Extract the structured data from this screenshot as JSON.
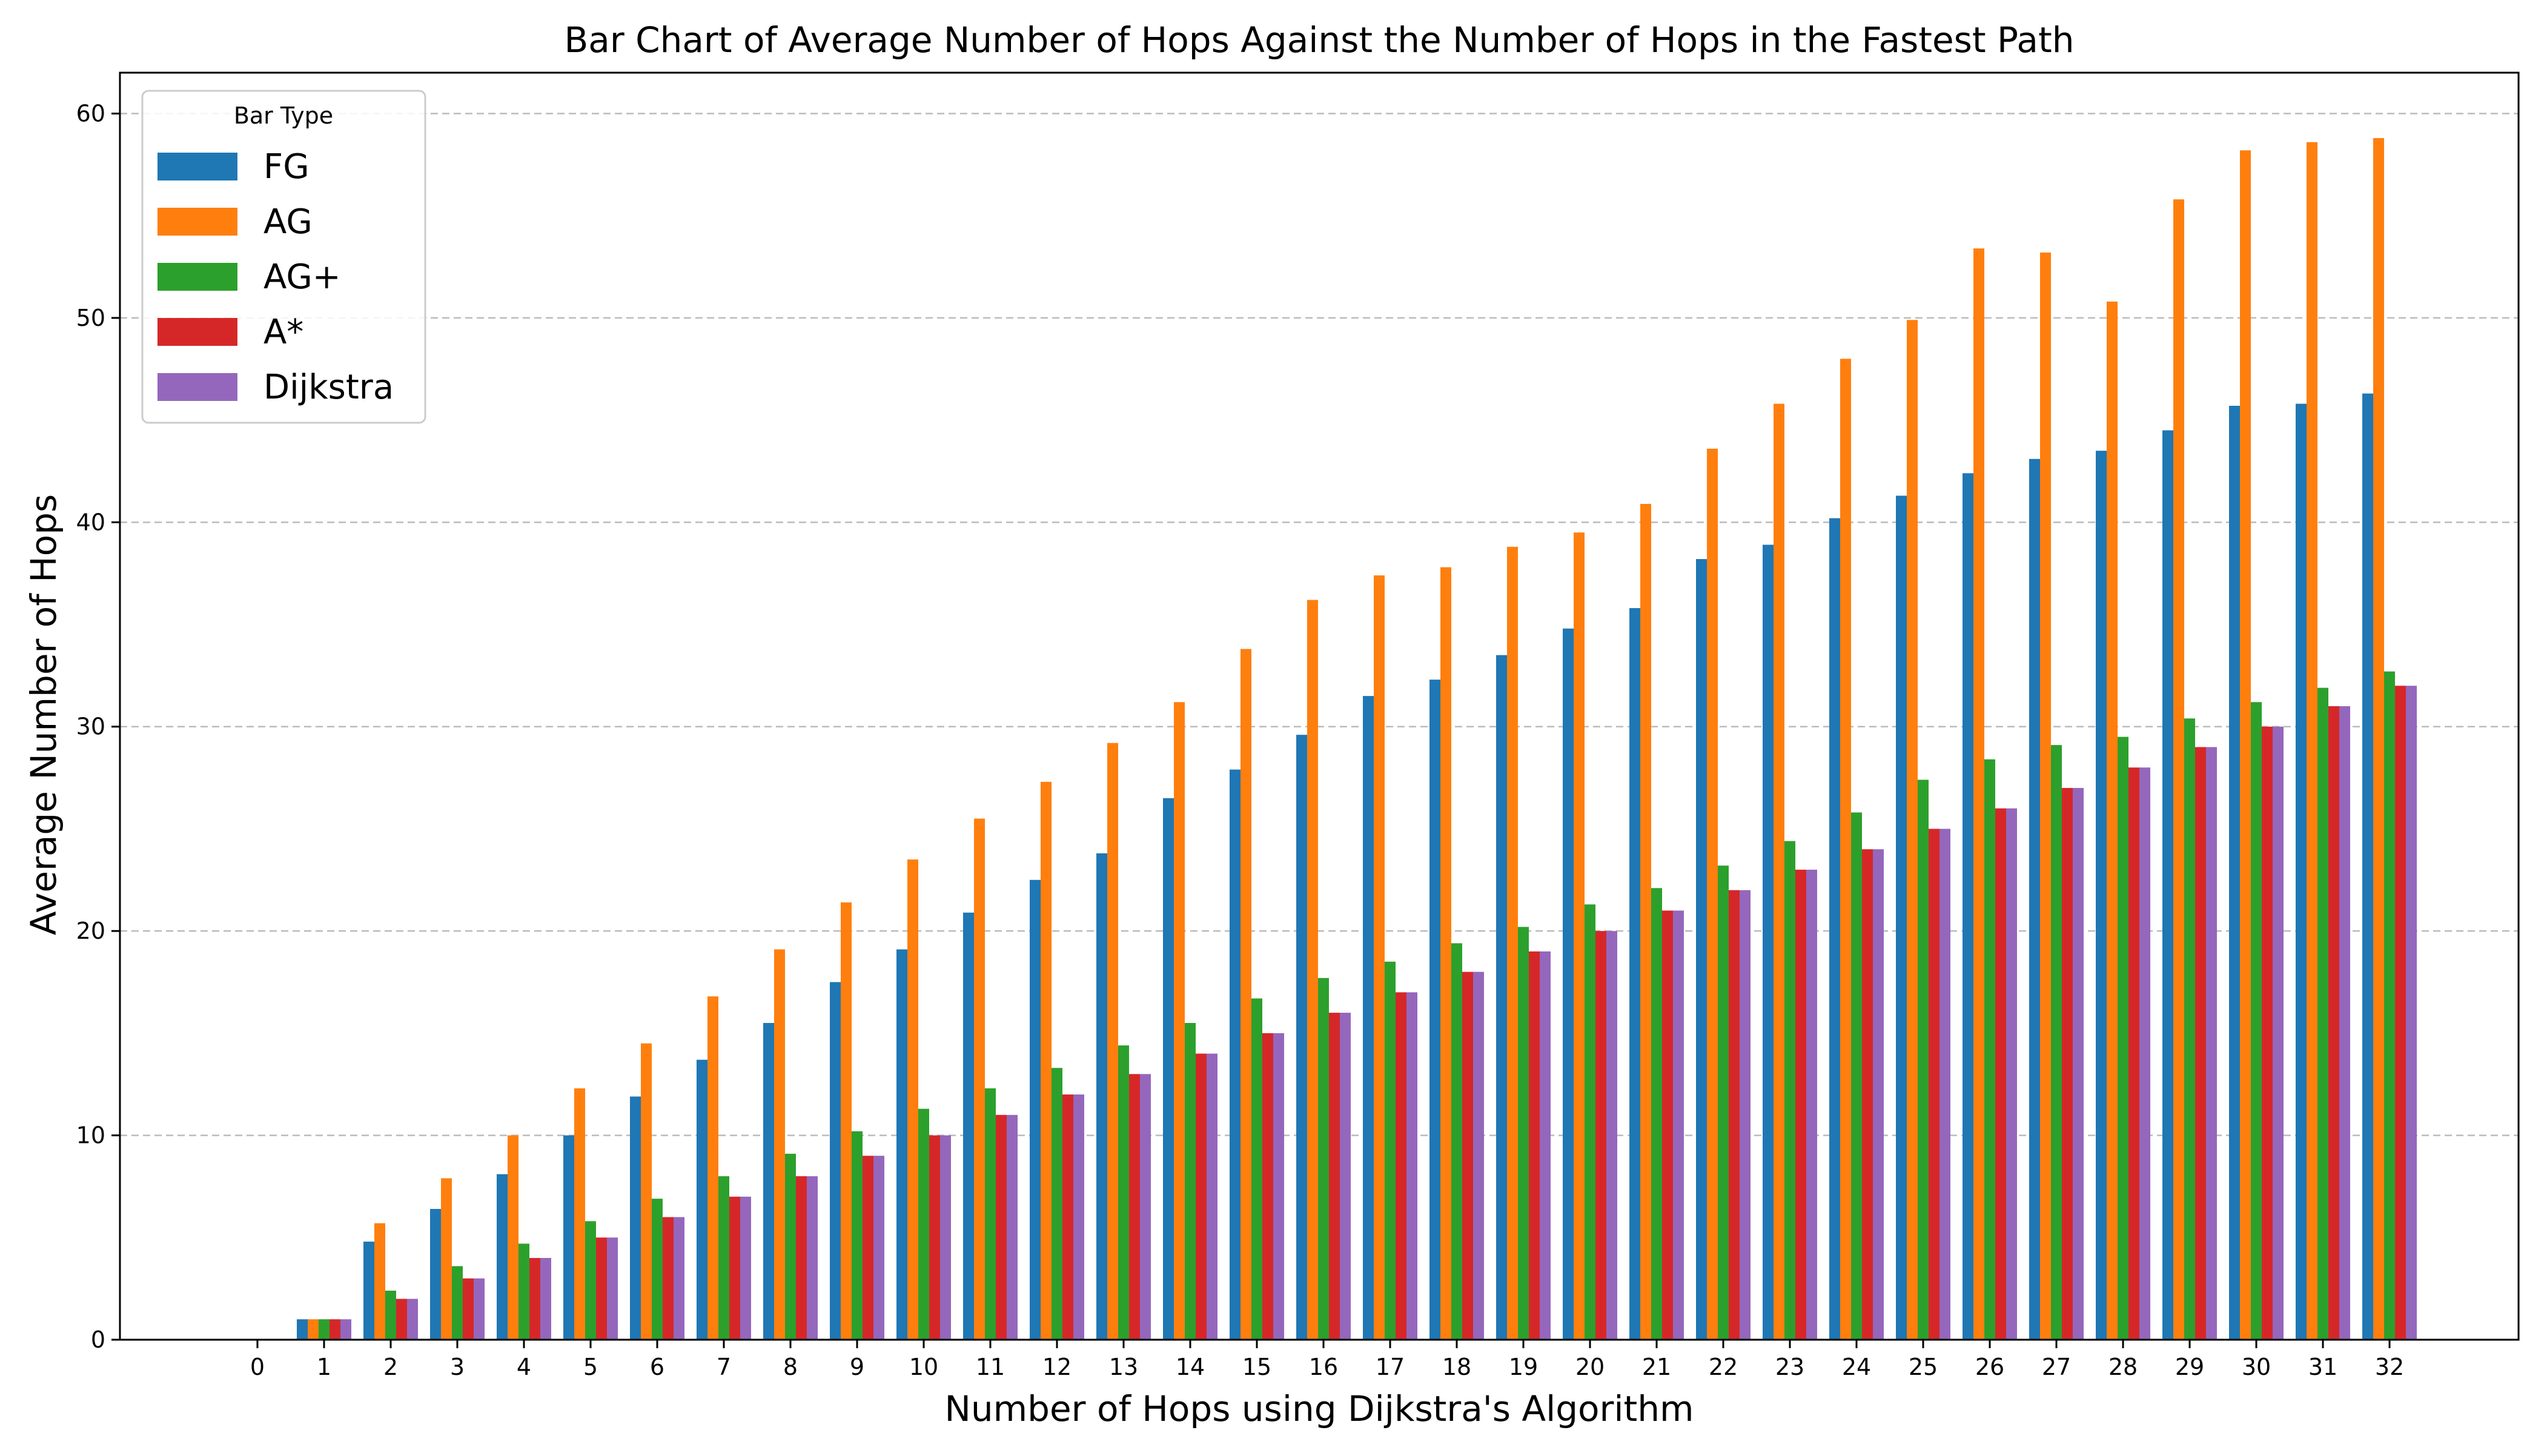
{
  "chart_data": {
    "type": "bar",
    "title": "Bar Chart of Average Number of Hops Against the Number of Hops in the Fastest Path",
    "xlabel": "Number of Hops using Dijkstra's Algorithm",
    "ylabel": "Average Number of Hops",
    "ylim": [
      0,
      62
    ],
    "yticks": [
      0,
      10,
      20,
      30,
      40,
      50,
      60
    ],
    "grid": "y-dashed",
    "legend": {
      "title": "Bar Type",
      "placement": "upper-left"
    },
    "categories": [
      "0",
      "1",
      "2",
      "3",
      "4",
      "5",
      "6",
      "7",
      "8",
      "9",
      "10",
      "11",
      "12",
      "13",
      "14",
      "15",
      "16",
      "17",
      "18",
      "19",
      "20",
      "21",
      "22",
      "23",
      "24",
      "25",
      "26",
      "27",
      "28",
      "29",
      "30",
      "31",
      "32"
    ],
    "series": [
      {
        "name": "FG",
        "color": "#1f77b4",
        "values": [
          0,
          1,
          4.8,
          6.4,
          8.1,
          10.0,
          11.9,
          13.7,
          15.5,
          17.5,
          19.1,
          20.9,
          22.5,
          23.8,
          26.5,
          27.9,
          29.6,
          31.5,
          32.3,
          33.5,
          34.8,
          35.8,
          38.2,
          38.9,
          40.2,
          41.3,
          42.4,
          43.1,
          43.5,
          44.5,
          45.7,
          45.8,
          46.3
        ]
      },
      {
        "name": "AG",
        "color": "#ff7f0e",
        "values": [
          0,
          1,
          5.7,
          7.9,
          10.0,
          12.3,
          14.5,
          16.8,
          19.1,
          21.4,
          23.5,
          25.5,
          27.3,
          29.2,
          31.2,
          33.8,
          36.2,
          37.4,
          37.8,
          38.8,
          39.5,
          40.9,
          43.6,
          45.8,
          48.0,
          49.9,
          53.4,
          53.2,
          50.8,
          55.8,
          58.2,
          58.6,
          58.8
        ]
      },
      {
        "name": "AG+",
        "color": "#2ca02c",
        "values": [
          0,
          1,
          2.4,
          3.6,
          4.7,
          5.8,
          6.9,
          8.0,
          9.1,
          10.2,
          11.3,
          12.3,
          13.3,
          14.4,
          15.5,
          16.7,
          17.7,
          18.5,
          19.4,
          20.2,
          21.3,
          22.1,
          23.2,
          24.4,
          25.8,
          27.4,
          28.4,
          29.1,
          29.5,
          30.4,
          31.2,
          31.9,
          32.7
        ]
      },
      {
        "name": "A*",
        "color": "#d62728",
        "values": [
          0,
          1,
          2,
          3,
          4,
          5,
          6,
          7,
          8,
          9,
          10,
          11,
          12,
          13,
          14,
          15,
          16,
          17,
          18,
          19,
          20,
          21,
          22,
          23,
          24,
          25,
          26,
          27,
          28,
          29,
          30,
          31,
          32
        ]
      },
      {
        "name": "Dijkstra",
        "color": "#9467bd",
        "values": [
          0,
          1,
          2,
          3,
          4,
          5,
          6,
          7,
          8,
          9,
          10,
          11,
          12,
          13,
          14,
          15,
          16,
          17,
          18,
          19,
          20,
          21,
          22,
          23,
          24,
          25,
          26,
          27,
          28,
          29,
          30,
          31,
          32
        ]
      }
    ]
  }
}
